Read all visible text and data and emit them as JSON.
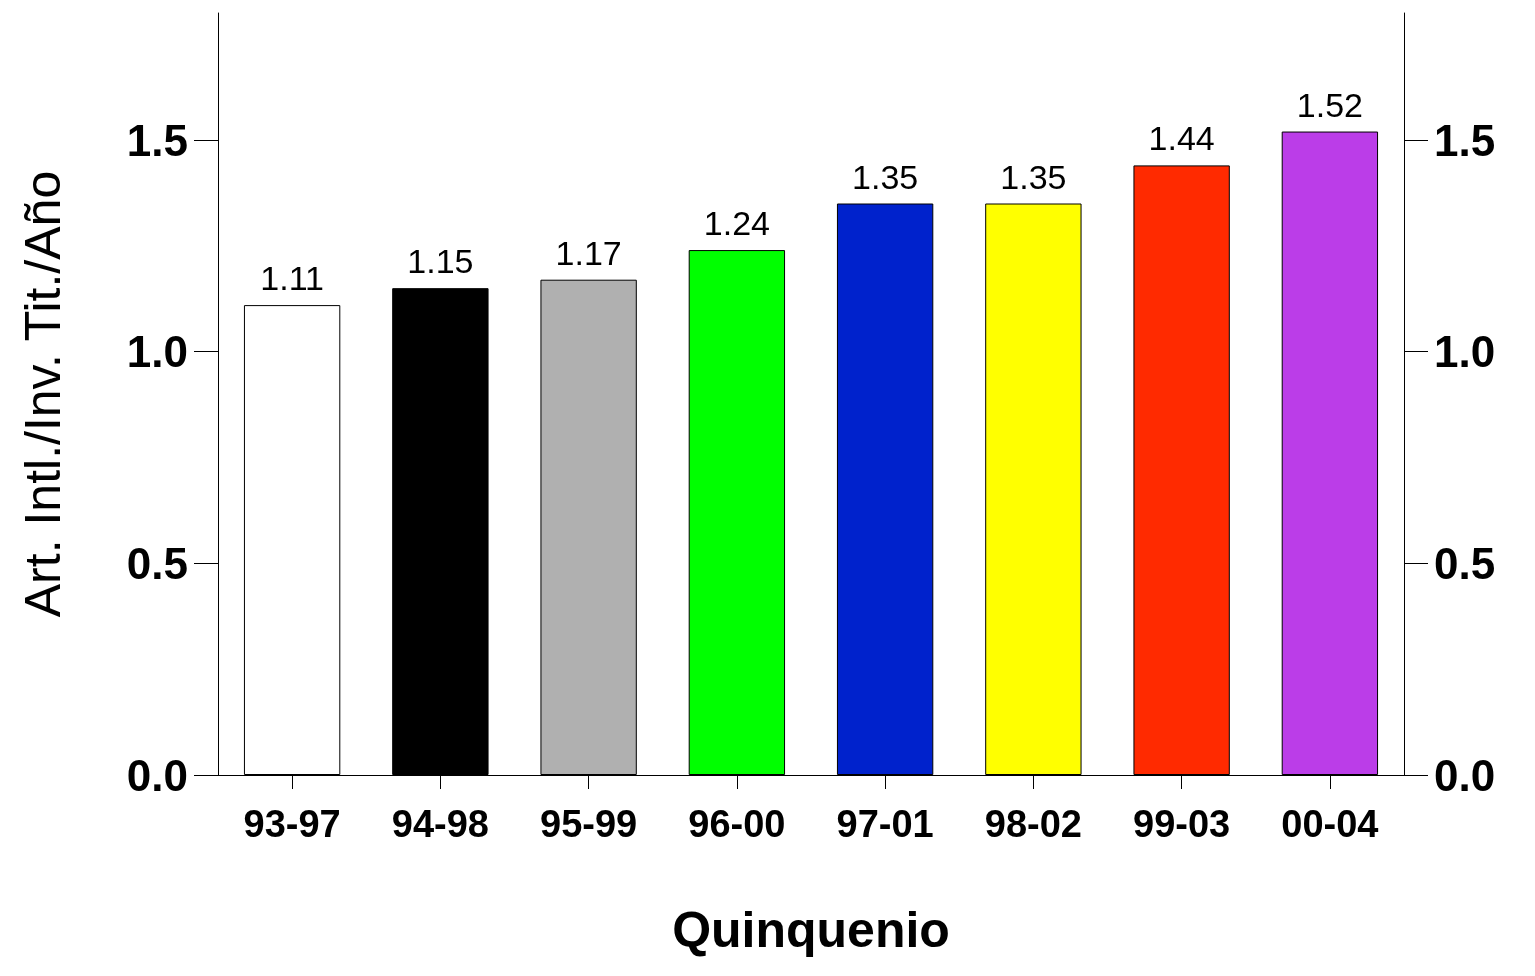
{
  "chart_data": {
    "type": "bar",
    "xlabel": "Quinquenio",
    "ylabel": "Art. Intl./Inv. Tit./Año",
    "categories": [
      "93-97",
      "94-98",
      "95-99",
      "96-00",
      "97-01",
      "98-02",
      "99-03",
      "00-04"
    ],
    "values": [
      1.11,
      1.15,
      1.17,
      1.24,
      1.35,
      1.35,
      1.44,
      1.52
    ],
    "colors": [
      "#ffffff",
      "#000000",
      "#b0b0b0",
      "#00ff00",
      "#0022cc",
      "#ffff00",
      "#ff2a00",
      "#bb3de8"
    ],
    "data_labels": true,
    "grid": false,
    "ylim": [
      0,
      1.8
    ],
    "yticks": [
      {
        "value": 0,
        "label": "0.0"
      },
      {
        "value": 0.5,
        "label": "0.5"
      },
      {
        "value": 1,
        "label": "1.0"
      },
      {
        "value": 1.5,
        "label": "1.5"
      }
    ],
    "y2lim": [
      0,
      1.8
    ],
    "y2ticks": [
      {
        "value": 0,
        "label": "0.0"
      },
      {
        "value": 0.5,
        "label": "0.5"
      },
      {
        "value": 1,
        "label": "1.0"
      },
      {
        "value": 1.5,
        "label": "1.5"
      }
    ]
  }
}
